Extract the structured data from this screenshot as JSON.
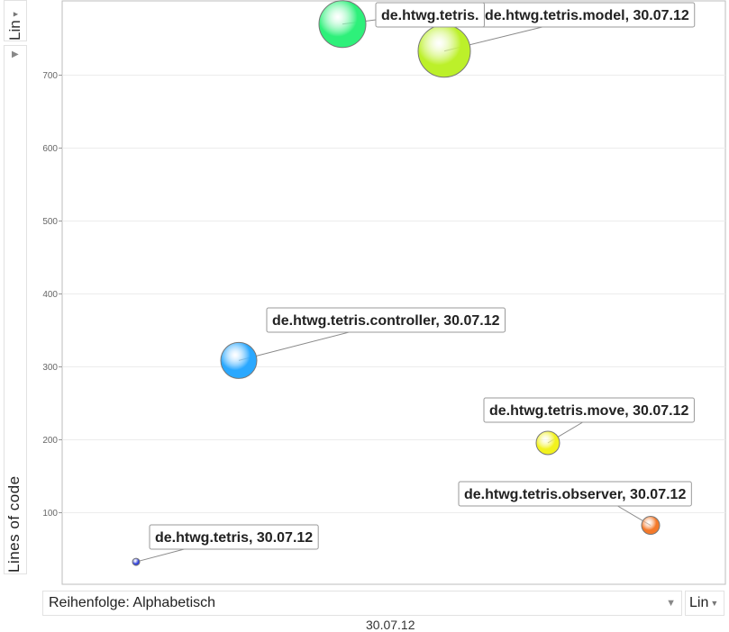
{
  "controls": {
    "y_scale": "Lin",
    "x_scale": "Lin",
    "order_label": "Reihenfolge: Alphabetisch",
    "time_label": "30.07.12"
  },
  "chart_data": {
    "type": "scatter",
    "ylabel": "Lines of code",
    "ylim": [
      0,
      800
    ],
    "yticks": [
      100,
      200,
      300,
      400,
      500,
      600,
      700
    ],
    "grid": true,
    "points": [
      {
        "label": "de.htwg.tetris, 30.07.12",
        "y": 32,
        "size": 1,
        "color": "#3344dd"
      },
      {
        "label": "de.htwg.tetris.controller, 30.07.12",
        "y": 308,
        "size": 5,
        "color": "#2aa8ff"
      },
      {
        "label": "de.htwg.tetris.move, 30.07.12",
        "y": 195,
        "size": 3,
        "color": "#f2f21e"
      },
      {
        "label": "de.htwg.tetris.observer, 30.07.12",
        "y": 82,
        "size": 2.5,
        "color": "#f4792a"
      },
      {
        "label": "de.htwg.tetris.model, 30.07.12",
        "y": 732,
        "size": 7,
        "color": "#bcf02a"
      },
      {
        "label": "de.htwg.tetris.",
        "y": 769,
        "size": 6.5,
        "color": "#2ef07a"
      }
    ]
  }
}
